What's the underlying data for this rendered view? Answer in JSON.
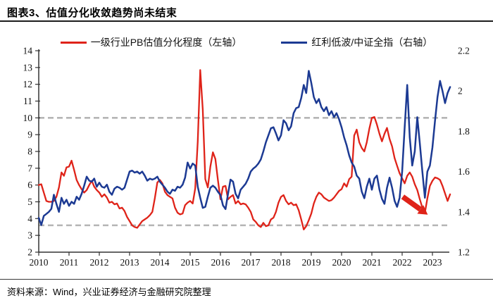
{
  "header": {
    "title": "图表3、估值分化收敛趋势尚未结束"
  },
  "legend": {
    "items": [
      {
        "label": "一级行业PB估值分化程度（左轴）",
        "color": "#df2319"
      },
      {
        "label": "红利低波/中证全指（右轴）",
        "color": "#1c3a93"
      }
    ]
  },
  "footer": {
    "source": "资料来源：Wind，兴业证券经济与金融研究院整理"
  },
  "chart_data": {
    "type": "line",
    "title": "图表3、估值分化收敛趋势尚未结束",
    "x_start_year": 2010,
    "x_step_months": 1,
    "x_tick_labels": [
      "2010",
      "2011",
      "2012",
      "2013",
      "2014",
      "2015",
      "2016",
      "2017",
      "2018",
      "2019",
      "2020",
      "2021",
      "2022",
      "2023"
    ],
    "left_axis": {
      "range": [
        2,
        14
      ],
      "tick_labels": [
        "2",
        "3",
        "4",
        "5",
        "6",
        "7",
        "8",
        "9",
        "10",
        "11",
        "12",
        "13",
        "14"
      ]
    },
    "right_axis": {
      "range": [
        1.2,
        2.2
      ],
      "tick_labels": [
        "1.2",
        "1.4",
        "1.6",
        "1.8",
        "2",
        "2.2"
      ]
    },
    "grid": "off",
    "legend_position": "top",
    "reference_lines_left_axis": [
      10,
      3.6
    ],
    "reference_line_color": "#b5b5b5",
    "series": [
      {
        "name": "一级行业PB估值分化程度（左轴）",
        "axis": "left",
        "color": "#df2319",
        "values": [
          6.0,
          6.05,
          5.55,
          5.05,
          5.0,
          5.0,
          5.05,
          5.3,
          5.85,
          6.75,
          6.55,
          7.05,
          7.1,
          7.45,
          6.9,
          6.3,
          6.0,
          5.75,
          5.55,
          5.7,
          6.0,
          6.25,
          5.9,
          5.7,
          5.55,
          5.3,
          5.45,
          5.25,
          4.95,
          5.0,
          4.85,
          4.9,
          4.6,
          4.65,
          4.45,
          4.1,
          3.85,
          3.6,
          3.5,
          3.45,
          3.65,
          3.85,
          3.95,
          4.05,
          4.2,
          4.4,
          5.2,
          6.15,
          6.3,
          6.1,
          5.6,
          5.4,
          5.3,
          5.2,
          4.65,
          4.35,
          4.25,
          4.3,
          4.8,
          4.95,
          5.05,
          4.9,
          5.8,
          8.6,
          12.85,
          10.5,
          6.35,
          5.85,
          7.1,
          7.95,
          7.55,
          6.3,
          5.15,
          5.9,
          5.95,
          5.15,
          5.3,
          5.4,
          4.9,
          5.05,
          4.85,
          4.9,
          4.85,
          4.65,
          4.4,
          3.95,
          3.8,
          3.6,
          3.5,
          3.75,
          3.55,
          3.6,
          3.95,
          4.05,
          4.4,
          4.95,
          5.3,
          5.4,
          5.05,
          4.85,
          4.95,
          4.8,
          4.85,
          4.5,
          3.95,
          3.35,
          3.55,
          3.9,
          4.3,
          4.9,
          5.3,
          5.55,
          5.45,
          5.25,
          5.15,
          5.05,
          5.1,
          5.25,
          5.45,
          5.65,
          5.75,
          6.1,
          5.9,
          6.35,
          6.5,
          8.95,
          9.3,
          8.55,
          8.2,
          8.0,
          8.55,
          9.35,
          10.0,
          10.05,
          9.6,
          9.05,
          8.6,
          9.05,
          9.4,
          8.75,
          8.3,
          7.6,
          7.15,
          6.7,
          6.4,
          6.1,
          6.55,
          6.75,
          6.5,
          6.05,
          5.7,
          5.15,
          4.65,
          4.35,
          5.2,
          5.95,
          6.25,
          6.45,
          6.4,
          6.3,
          5.95,
          5.5,
          5.05,
          5.45
        ]
      },
      {
        "name": "红利低波/中证全指（右轴）",
        "axis": "right",
        "color": "#1c3a93",
        "values": [
          1.37,
          1.335,
          1.38,
          1.39,
          1.4,
          1.415,
          1.485,
          1.44,
          1.4,
          1.47,
          1.44,
          1.46,
          1.43,
          1.45,
          1.44,
          1.475,
          1.46,
          1.49,
          1.53,
          1.575,
          1.555,
          1.55,
          1.565,
          1.525,
          1.545,
          1.525,
          1.52,
          1.535,
          1.5,
          1.485,
          1.515,
          1.525,
          1.52,
          1.51,
          1.52,
          1.56,
          1.6,
          1.605,
          1.595,
          1.6,
          1.59,
          1.6,
          1.58,
          1.555,
          1.565,
          1.56,
          1.565,
          1.575,
          1.55,
          1.535,
          1.52,
          1.5,
          1.49,
          1.51,
          1.505,
          1.525,
          1.52,
          1.535,
          1.57,
          1.645,
          1.615,
          1.64,
          1.63,
          1.525,
          1.47,
          1.42,
          1.425,
          1.475,
          1.52,
          1.53,
          1.52,
          1.5,
          1.484,
          1.432,
          1.414,
          1.49,
          1.56,
          1.55,
          1.49,
          1.467,
          1.51,
          1.525,
          1.54,
          1.565,
          1.6,
          1.615,
          1.625,
          1.64,
          1.66,
          1.7,
          1.745,
          1.78,
          1.815,
          1.82,
          1.79,
          1.755,
          1.78,
          1.855,
          1.84,
          1.805,
          1.825,
          1.89,
          1.915,
          1.92,
          1.965,
          2.03,
          1.99,
          2.1,
          2.04,
          1.97,
          1.94,
          1.96,
          1.92,
          1.9,
          1.92,
          1.88,
          1.9,
          1.87,
          1.89,
          1.86,
          1.82,
          1.77,
          1.73,
          1.68,
          1.645,
          1.625,
          1.58,
          1.565,
          1.5,
          1.468,
          1.525,
          1.565,
          1.51,
          1.565,
          1.58,
          1.51,
          1.465,
          1.44,
          1.52,
          1.57,
          1.52,
          1.455,
          1.425,
          1.47,
          1.6,
          1.82,
          2.03,
          1.77,
          1.63,
          1.7,
          1.87,
          1.74,
          1.6,
          1.47,
          1.6,
          1.63,
          1.72,
          1.85,
          1.97,
          2.05,
          2.0,
          1.94,
          1.99,
          2.02
        ]
      }
    ],
    "annotation_arrow": {
      "x1": 2022.02,
      "y1_left": 5.3,
      "x2": 2022.6,
      "y2_left": 4.55,
      "color": "#df2319"
    }
  }
}
